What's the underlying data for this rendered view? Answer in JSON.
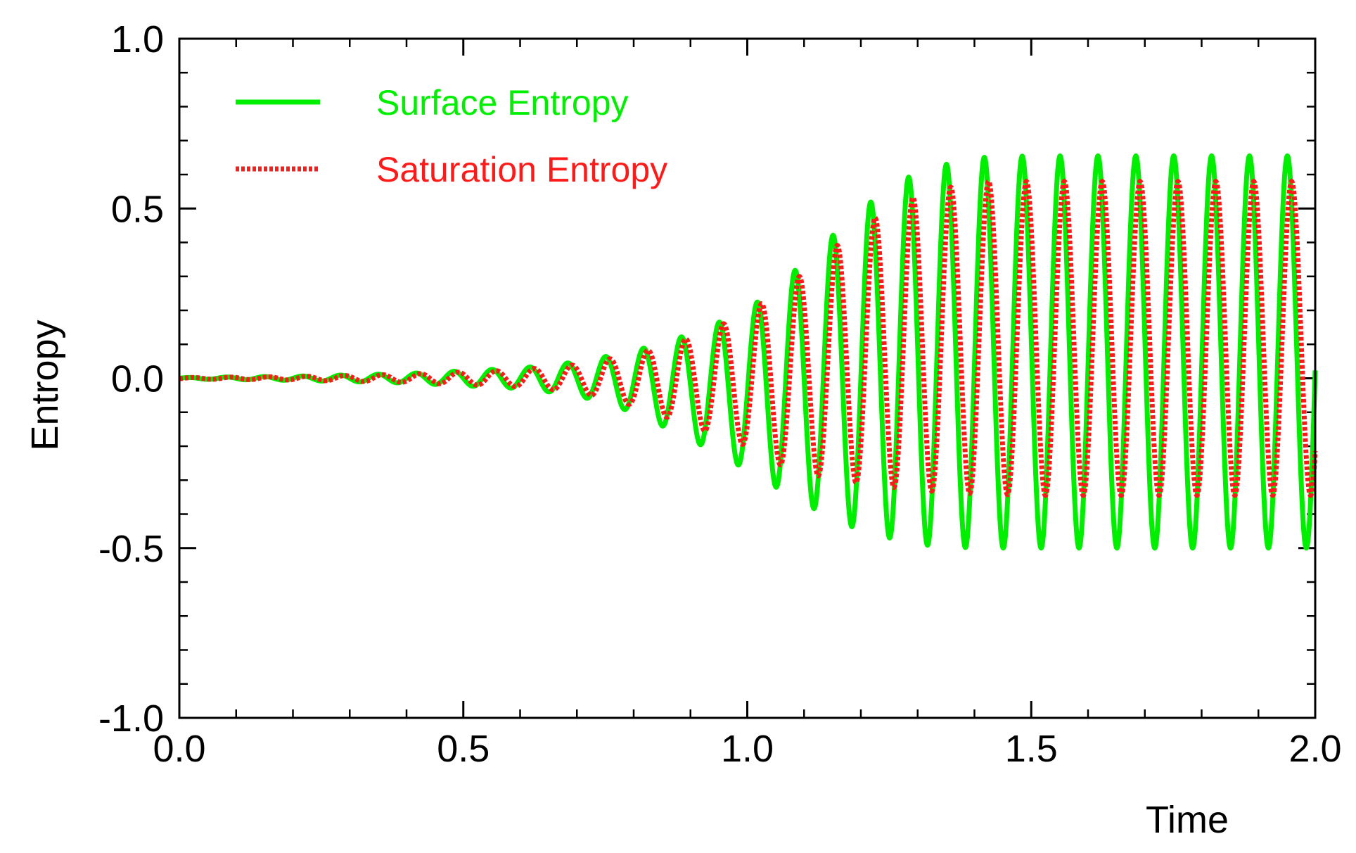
{
  "chart_data": {
    "type": "line",
    "xlabel": "Time",
    "ylabel": "Entropy",
    "xlim": [
      0.0,
      2.0
    ],
    "ylim": [
      -1.0,
      1.0
    ],
    "grid": false,
    "legend_position": "top-left",
    "x_ticks": [
      0.0,
      0.5,
      1.0,
      1.5,
      2.0
    ],
    "x_tick_labels": [
      "0.0",
      "0.5",
      "1.0",
      "1.5",
      "2.0"
    ],
    "y_ticks": [
      -1.0,
      -0.5,
      0.0,
      0.5,
      1.0
    ],
    "y_tick_labels": [
      "-1.0",
      "-0.5",
      "0.0",
      "0.5",
      "1.0"
    ],
    "x_minor_step": 0.1,
    "y_minor_step": 0.1,
    "period": 0.0667,
    "series": [
      {
        "name": "Surface Entropy",
        "style": "solid",
        "color": "#00ee00",
        "phase": 0.0,
        "peaks_x": [
          0.0,
          0.2,
          0.4,
          0.6,
          0.7,
          0.8,
          0.9,
          1.0,
          1.05,
          1.1,
          1.2,
          1.3,
          1.4,
          1.5,
          1.6,
          1.7,
          1.8,
          1.9,
          2.0
        ],
        "peaks_y": [
          0.002,
          0.006,
          0.014,
          0.03,
          0.048,
          0.08,
          0.13,
          0.2,
          0.27,
          0.34,
          0.5,
          0.61,
          0.65,
          0.655,
          0.655,
          0.655,
          0.655,
          0.655,
          0.655
        ],
        "troughs_x": [
          0.0,
          0.2,
          0.4,
          0.6,
          0.7,
          0.8,
          0.9,
          1.0,
          1.05,
          1.1,
          1.2,
          1.3,
          1.4,
          1.5,
          1.6,
          1.7,
          1.8,
          1.9,
          2.0
        ],
        "troughs_y": [
          -0.002,
          -0.006,
          -0.014,
          -0.03,
          -0.05,
          -0.1,
          -0.18,
          -0.27,
          -0.32,
          -0.37,
          -0.45,
          -0.49,
          -0.5,
          -0.5,
          -0.5,
          -0.5,
          -0.5,
          -0.5,
          -0.5
        ]
      },
      {
        "name": "Saturation Entropy",
        "style": "dotted",
        "color": "#ff1a1a",
        "phase": 0.0075,
        "peaks_x": [
          0.0,
          0.2,
          0.4,
          0.6,
          0.7,
          0.8,
          0.9,
          1.0,
          1.05,
          1.1,
          1.2,
          1.3,
          1.4,
          1.5,
          1.6,
          1.7,
          1.8,
          1.9,
          2.0
        ],
        "peaks_y": [
          0.002,
          0.005,
          0.012,
          0.025,
          0.04,
          0.07,
          0.12,
          0.19,
          0.25,
          0.31,
          0.45,
          0.54,
          0.58,
          0.58,
          0.58,
          0.58,
          0.58,
          0.58,
          0.58
        ],
        "troughs_x": [
          0.0,
          0.2,
          0.4,
          0.6,
          0.7,
          0.8,
          0.9,
          1.0,
          1.05,
          1.1,
          1.2,
          1.3,
          1.4,
          1.5,
          1.6,
          1.7,
          1.8,
          1.9,
          2.0
        ],
        "troughs_y": [
          -0.002,
          -0.005,
          -0.012,
          -0.025,
          -0.04,
          -0.08,
          -0.14,
          -0.2,
          -0.25,
          -0.28,
          -0.31,
          -0.33,
          -0.34,
          -0.345,
          -0.345,
          -0.345,
          -0.345,
          -0.345,
          -0.345
        ]
      }
    ]
  }
}
